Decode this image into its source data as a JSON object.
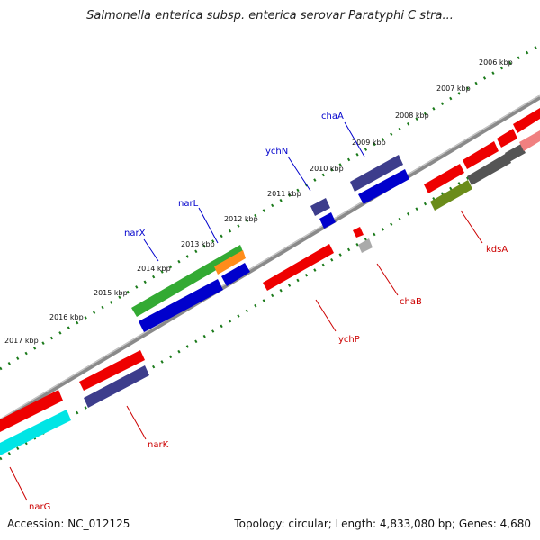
{
  "title": "Salmonella enterica subsp. enterica serovar Paratyphi C stra...",
  "footer": {
    "accession": "Accession: NC_012125",
    "topology": "Topology: circular; Length: 4,833,080 bp; Genes: 4,680"
  },
  "colors": {
    "backbone": "#8a8a8a",
    "tick_dots": "#1a7a1a",
    "label_forward": "#0000cc",
    "label_reverse": "#cc0000"
  },
  "kbp_labels": [
    "2006 kbp",
    "2007 kbp",
    "2008 kbp",
    "2009 kbp",
    "2010 kbp",
    "2011 kbp",
    "2012 kbp",
    "2013 kbp",
    "2014 kbp",
    "2015 kbp",
    "2016 kbp",
    "2017 kbp"
  ],
  "genes": [
    {
      "name": "narG",
      "color": "#dd0000",
      "strand": "reverse"
    },
    {
      "name": "narK",
      "color": "#dd0000",
      "strand": "reverse"
    },
    {
      "name": "narX",
      "color": "#0000aa",
      "strand": "forward"
    },
    {
      "name": "narL",
      "color": "#0000aa",
      "strand": "forward"
    },
    {
      "name": "ychN",
      "color": "#0000aa",
      "strand": "forward"
    },
    {
      "name": "chaA",
      "color": "#0000aa",
      "strand": "forward"
    },
    {
      "name": "ychP",
      "color": "#dd0000",
      "strand": "reverse"
    },
    {
      "name": "chaB",
      "color": "#dd0000",
      "strand": "reverse"
    },
    {
      "name": "kdsA",
      "color": "#dd0000",
      "strand": "reverse"
    }
  ]
}
